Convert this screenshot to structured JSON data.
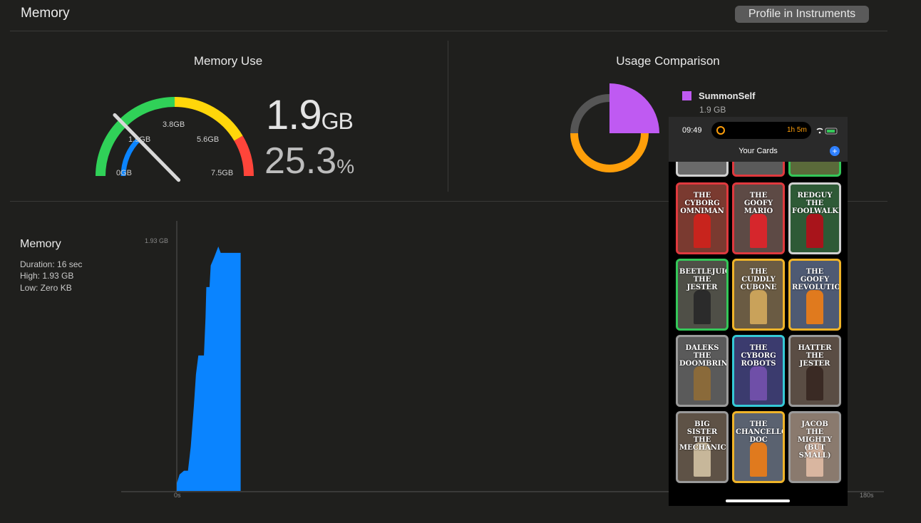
{
  "header": {
    "title": "Memory",
    "profile_button": "Profile in Instruments"
  },
  "memory_use": {
    "title": "Memory Use",
    "gauge": {
      "labels": [
        "0GB",
        "1.9GB",
        "3.8GB",
        "5.6GB",
        "7.5GB"
      ],
      "fill_fraction": 0.253,
      "colors": {
        "green": "#30d158",
        "yellow": "#ffd60a",
        "red": "#ff453a",
        "blue": "#0a84ff"
      }
    },
    "value_number": "1.9",
    "value_unit": "GB",
    "percent_number": "25.3",
    "percent_unit": "%"
  },
  "usage_comparison": {
    "title": "Usage Comparison",
    "legend": [
      {
        "name": "SummonSelf",
        "value": "1.9 GB",
        "color": "#bf5af2"
      }
    ],
    "donut_colors": {
      "app": "#bf5af2",
      "other": "#ff9f0a",
      "free": "#555555"
    }
  },
  "graph": {
    "title": "Memory",
    "duration": "Duration: 16 sec",
    "high": "High: 1.93 GB",
    "low": "Low: Zero KB",
    "y_max_label": "1.93 GB",
    "x_start_label": "0s",
    "x_end_label": "180s",
    "series_color": "#0a84ff"
  },
  "chart_data": {
    "type": "area",
    "title": "Memory",
    "xlabel": "",
    "ylabel": "",
    "x_unit": "s",
    "xlim": [
      0,
      180
    ],
    "ylim": [
      0,
      1.93
    ],
    "x": [
      0,
      0.7,
      1.8,
      2.8,
      3.5,
      4.3,
      4.8,
      5.4,
      6.8,
      7.2,
      7.4,
      8.2,
      8.5,
      9.3,
      10.4,
      11.0,
      15.2,
      16.0
    ],
    "values": [
      0.06,
      0.13,
      0.16,
      0.16,
      0.35,
      0.68,
      0.92,
      1.07,
      1.07,
      1.37,
      1.61,
      1.61,
      1.78,
      1.84,
      1.93,
      1.88,
      1.88,
      1.88
    ]
  },
  "phone": {
    "time": "09:49",
    "timer": "1h 5m",
    "screen_title": "Your Cards",
    "add_icon": "+",
    "cards": [
      {
        "title": "THE CYBORG OMNIMAN",
        "border": "#e0393e",
        "bg": "#7a3a30",
        "fig": "#c8241d"
      },
      {
        "title": "THE GOOFY MARIO",
        "border": "#e0393e",
        "bg": "#5d4a45",
        "fig": "#d6262c"
      },
      {
        "title": "REDGUY THE FOOLWALKER",
        "border": "#d0d0d0",
        "bg": "#2e5a36",
        "fig": "#a8141b"
      },
      {
        "title": "BEETLEJUICE THE JESTER",
        "border": "#34c759",
        "bg": "#4f4f47",
        "fig": "#2b2b2b"
      },
      {
        "title": "THE CUDDLY CUBONE",
        "border": "#f0b429",
        "bg": "#6a5b43",
        "fig": "#c9a25a"
      },
      {
        "title": "THE GOOFY REVOLUTION",
        "border": "#f0b429",
        "bg": "#4e5a73",
        "fig": "#e07a1e"
      },
      {
        "title": "DALEKS THE DOOMBRINGER",
        "border": "#9a9a9a",
        "bg": "#5a5a5a",
        "fig": "#8a6a3a"
      },
      {
        "title": "THE CYBORG ROBOTS",
        "border": "#35c9d6",
        "bg": "#3b3b6e",
        "fig": "#6f4fa8"
      },
      {
        "title": "HATTER THE JESTER",
        "border": "#9a9a9a",
        "bg": "#5a4d44",
        "fig": "#3a2a24"
      },
      {
        "title": "BIG SISTER THE MECHANIC",
        "border": "#9a9a9a",
        "bg": "#5e5246",
        "fig": "#c7b79a"
      },
      {
        "title": "THE CHANCELLOR DOC",
        "border": "#f0b429",
        "bg": "#5a6270",
        "fig": "#e07a1e"
      },
      {
        "title": "JACOB THE MIGHTY (BUT SMALL)",
        "border": "#9a9a9a",
        "bg": "#8a7a6e",
        "fig": "#d9b6a0"
      }
    ]
  }
}
